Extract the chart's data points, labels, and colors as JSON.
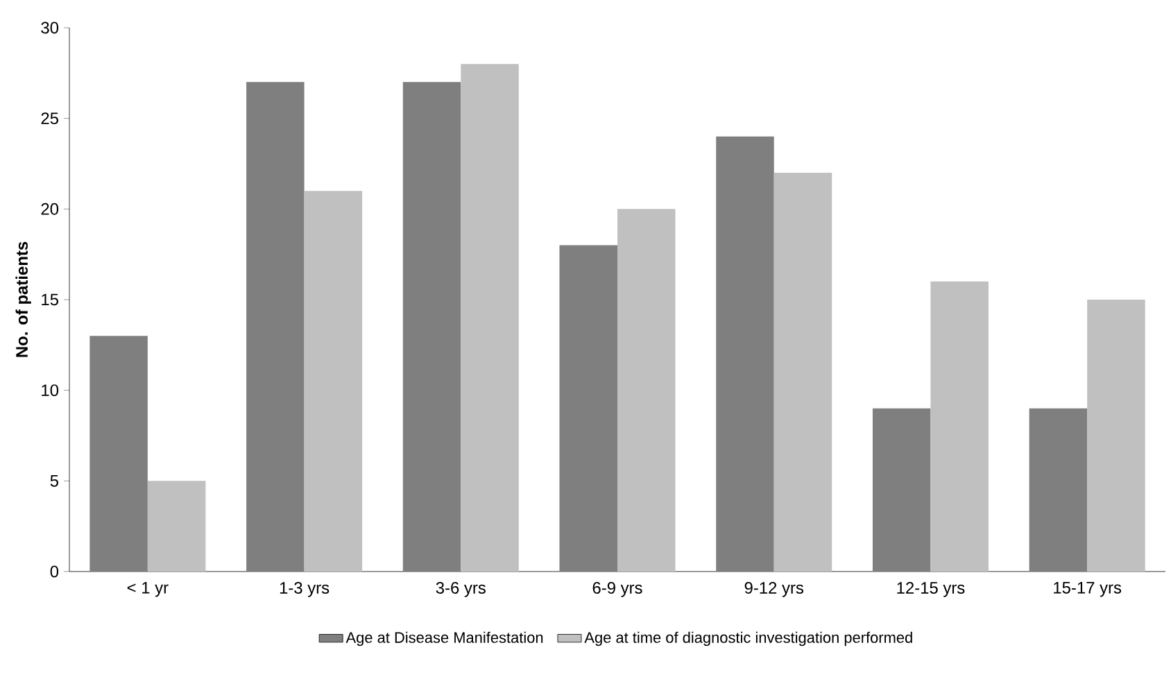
{
  "chart_data": {
    "type": "bar",
    "ylabel": "No. of patients",
    "categories": [
      "< 1 yr",
      "1-3 yrs",
      "3-6 yrs",
      "6-9 yrs",
      "9-12 yrs",
      "12-15 yrs",
      "15-17 yrs"
    ],
    "series": [
      {
        "name": "Age at Disease Manifestation",
        "color": "#7f7f7f",
        "values": [
          13,
          27,
          27,
          18,
          24,
          9,
          9
        ]
      },
      {
        "name": "Age at time of diagnostic investigation performed",
        "color": "#c0c0c0",
        "values": [
          5,
          21,
          28,
          20,
          22,
          16,
          15
        ]
      }
    ],
    "ylim": [
      0,
      30
    ],
    "yticks": [
      0,
      5,
      10,
      15,
      20,
      25,
      30
    ],
    "legend": "bottom"
  }
}
